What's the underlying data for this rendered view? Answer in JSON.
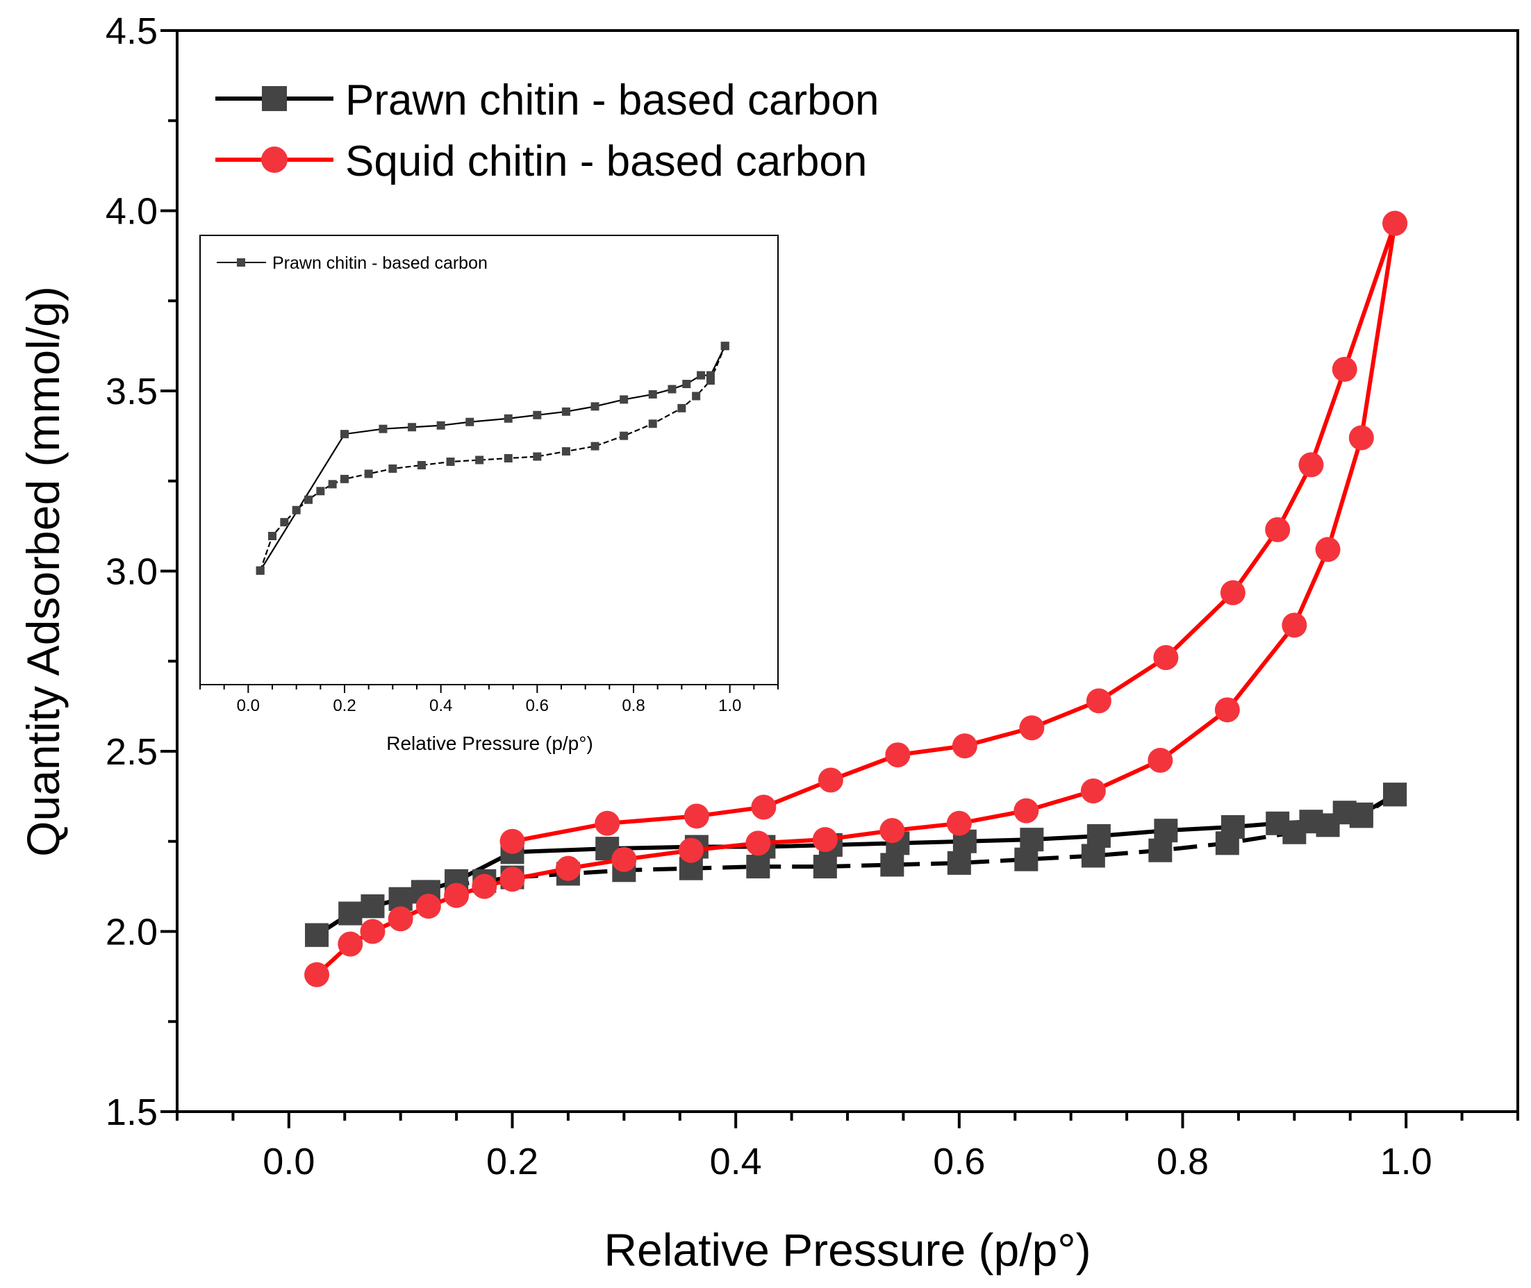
{
  "chart_data": [
    {
      "type": "line",
      "title": "",
      "xlabel": "Relative Pressure (p/p°)",
      "ylabel": "Quantity Adsorbed (mmol/g)",
      "xlim": [
        -0.1,
        1.1
      ],
      "ylim": [
        1.5,
        4.5
      ],
      "x_ticks": [
        "0.0",
        "0.2",
        "0.4",
        "0.6",
        "0.8",
        "1.0"
      ],
      "y_ticks": [
        "1.5",
        "2.0",
        "2.5",
        "3.0",
        "3.5",
        "4.0",
        "4.5"
      ],
      "grid": false,
      "legend_position": "top-left",
      "series": [
        {
          "name": "Prawn chitin - based carbon",
          "color": "#000000",
          "marker": "square",
          "marker_color": "#444444",
          "adsorption": {
            "x": [
              0.025,
              0.055,
              0.075,
              0.1,
              0.125,
              0.15,
              0.175,
              0.2,
              0.25,
              0.3,
              0.36,
              0.42,
              0.48,
              0.54,
              0.6,
              0.66,
              0.72,
              0.78,
              0.84,
              0.9,
              0.93,
              0.96,
              0.99
            ],
            "y": [
              1.99,
              2.05,
              2.07,
              2.09,
              2.11,
              2.13,
              2.14,
              2.15,
              2.16,
              2.17,
              2.175,
              2.18,
              2.18,
              2.185,
              2.19,
              2.2,
              2.21,
              2.225,
              2.245,
              2.275,
              2.295,
              2.32,
              2.38
            ]
          },
          "desorption": {
            "x": [
              0.99,
              0.96,
              0.945,
              0.915,
              0.885,
              0.845,
              0.785,
              0.725,
              0.665,
              0.605,
              0.545,
              0.485,
              0.425,
              0.365,
              0.285,
              0.2,
              0.15,
              0.12,
              0.1,
              0.075,
              0.055,
              0.025
            ],
            "y": [
              2.38,
              2.325,
              2.33,
              2.305,
              2.3,
              2.29,
              2.28,
              2.265,
              2.255,
              2.25,
              2.245,
              2.24,
              2.235,
              2.235,
              2.23,
              2.22,
              2.14,
              2.11,
              2.09,
              2.07,
              2.05,
              1.99
            ]
          }
        },
        {
          "name": "Squid chitin - based carbon",
          "color": "#ff0000",
          "marker": "circle",
          "marker_color": "#f4343c",
          "adsorption": {
            "x": [
              0.025,
              0.055,
              0.075,
              0.1,
              0.125,
              0.15,
              0.175,
              0.2,
              0.25,
              0.3,
              0.36,
              0.42,
              0.48,
              0.54,
              0.6,
              0.66,
              0.72,
              0.78,
              0.84,
              0.9,
              0.93,
              0.96,
              0.99
            ],
            "y": [
              1.88,
              1.965,
              2.0,
              2.035,
              2.07,
              2.1,
              2.125,
              2.145,
              2.175,
              2.2,
              2.225,
              2.245,
              2.255,
              2.28,
              2.3,
              2.335,
              2.39,
              2.475,
              2.615,
              2.85,
              3.06,
              3.37,
              3.965
            ]
          },
          "desorption": {
            "x": [
              0.99,
              0.945,
              0.915,
              0.885,
              0.845,
              0.785,
              0.725,
              0.665,
              0.605,
              0.545,
              0.485,
              0.425,
              0.365,
              0.285,
              0.2
            ],
            "y": [
              3.965,
              3.56,
              3.295,
              3.115,
              2.94,
              2.76,
              2.64,
              2.565,
              2.515,
              2.49,
              2.42,
              2.345,
              2.32,
              2.3,
              2.25
            ]
          }
        }
      ]
    },
    {
      "type": "line",
      "title": "",
      "xlabel": "Relative Pressure (p/p°)",
      "ylabel": "",
      "xlim": [
        -0.1,
        1.1
      ],
      "ylim": [
        2.75,
        4.05
      ],
      "x_ticks": [
        "0.0",
        "0.2",
        "0.4",
        "0.6",
        "0.8",
        "1.0"
      ],
      "grid": false,
      "legend_position": "top-left",
      "series": [
        {
          "name": "Prawn chitin - based carbon",
          "color": "#000000",
          "marker": "square",
          "marker_color": "#444444",
          "adsorption": {
            "x": [
              0.025,
              0.05,
              0.075,
              0.1,
              0.125,
              0.15,
              0.175,
              0.2,
              0.25,
              0.3,
              0.36,
              0.42,
              0.48,
              0.54,
              0.6,
              0.66,
              0.72,
              0.78,
              0.84,
              0.9,
              0.93,
              0.96,
              0.99
            ],
            "y": [
              3.08,
              3.18,
              3.22,
              3.255,
              3.285,
              3.31,
              3.33,
              3.345,
              3.36,
              3.375,
              3.385,
              3.395,
              3.4,
              3.405,
              3.41,
              3.425,
              3.44,
              3.47,
              3.505,
              3.55,
              3.585,
              3.63,
              3.73
            ]
          },
          "desorption": {
            "x": [
              0.99,
              0.96,
              0.94,
              0.91,
              0.88,
              0.84,
              0.78,
              0.72,
              0.66,
              0.6,
              0.54,
              0.46,
              0.4,
              0.34,
              0.28,
              0.2,
              0.025
            ],
            "y": [
              3.73,
              3.645,
              3.645,
              3.62,
              3.605,
              3.59,
              3.575,
              3.555,
              3.54,
              3.53,
              3.52,
              3.51,
              3.5,
              3.495,
              3.49,
              3.475,
              3.08
            ]
          }
        }
      ]
    }
  ]
}
